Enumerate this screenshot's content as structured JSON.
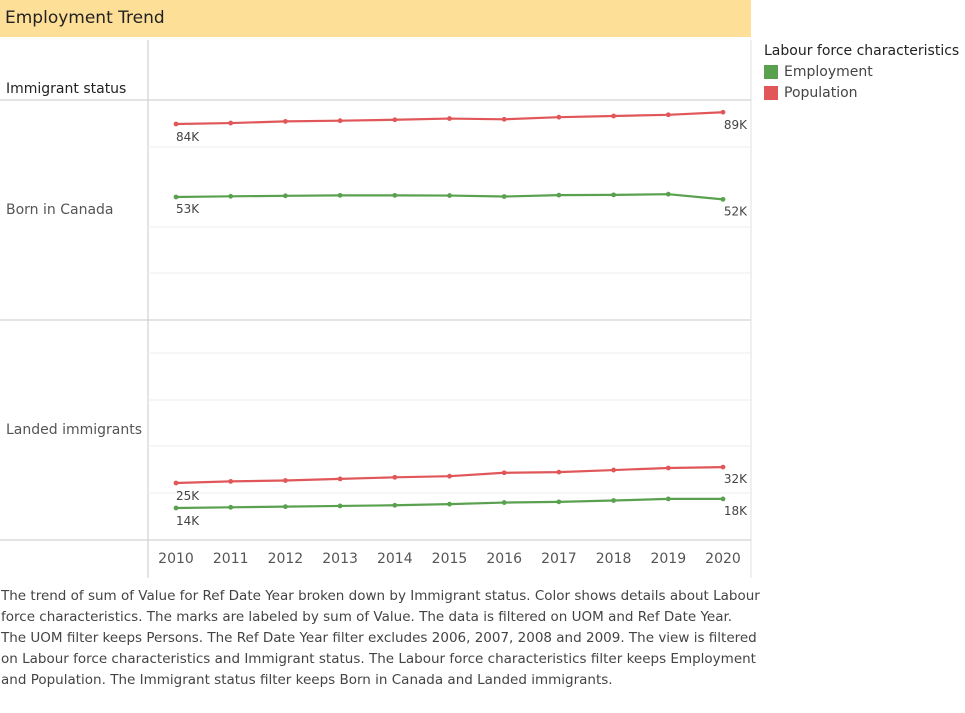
{
  "title": "Employment Trend",
  "row_header": "Immigrant status",
  "legend": {
    "title": "Labour force characteristics",
    "items": [
      {
        "label": "Employment",
        "color": "#59a14f"
      },
      {
        "label": "Population",
        "color": "#e15759"
      }
    ]
  },
  "caption": "The trend of sum of Value for Ref Date Year broken down by Immigrant status.  Color shows details about Labour force characteristics.  The marks are labeled by sum of Value. The data is filtered on UOM and Ref Date Year. The UOM filter keeps Persons. The Ref Date Year filter excludes 2006, 2007, 2008 and 2009. The view is filtered on Labour force characteristics and Immigrant status. The Labour force characteristics filter keeps Employment and Population. The Immigrant status filter keeps Born in Canada and Landed immigrants.",
  "chart_data": [
    {
      "type": "line",
      "panel": "Born in Canada",
      "x": [
        "2010",
        "2011",
        "2012",
        "2013",
        "2014",
        "2015",
        "2016",
        "2017",
        "2018",
        "2019",
        "2020"
      ],
      "series": [
        {
          "name": "Population",
          "color": "#e15759",
          "values": [
            84000,
            84400,
            85100,
            85400,
            85800,
            86300,
            86000,
            86900,
            87400,
            87900,
            89000
          ],
          "labels": {
            "first": "84K",
            "last": "89K"
          }
        },
        {
          "name": "Employment",
          "color": "#59a14f",
          "values": [
            53000,
            53300,
            53500,
            53700,
            53700,
            53600,
            53200,
            53800,
            53900,
            54200,
            52000
          ],
          "labels": {
            "first": "53K",
            "last": "52K"
          }
        }
      ]
    },
    {
      "type": "line",
      "panel": "Landed immigrants",
      "x": [
        "2010",
        "2011",
        "2012",
        "2013",
        "2014",
        "2015",
        "2016",
        "2017",
        "2018",
        "2019",
        "2020"
      ],
      "series": [
        {
          "name": "Population",
          "color": "#e15759",
          "values": [
            25000,
            25700,
            26100,
            26800,
            27500,
            28000,
            29500,
            29800,
            30700,
            31600,
            32000
          ],
          "labels": {
            "first": "25K",
            "last": "32K"
          }
        },
        {
          "name": "Employment",
          "color": "#59a14f",
          "values": [
            14000,
            14300,
            14600,
            14900,
            15200,
            15700,
            16400,
            16700,
            17300,
            18000,
            18000
          ],
          "labels": {
            "first": "14K",
            "last": "18K"
          }
        }
      ]
    }
  ]
}
